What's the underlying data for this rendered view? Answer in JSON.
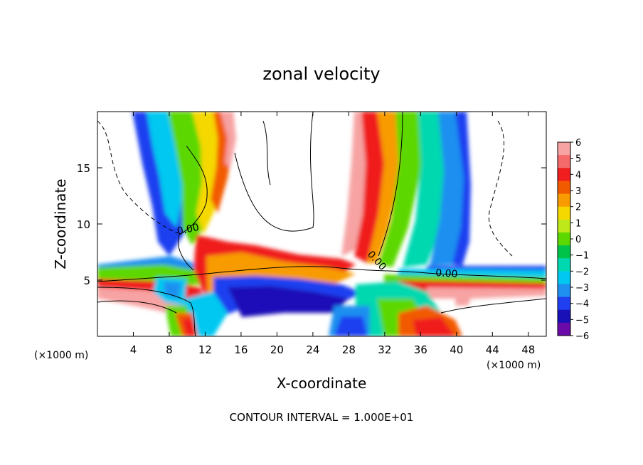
{
  "chart_data": {
    "type": "heatmap",
    "title": "zonal velocity",
    "xlabel": "X-coordinate",
    "ylabel": "Z-coordinate",
    "x_unit": "(×1000 m)",
    "xlim": [
      0,
      50
    ],
    "ylim": [
      0,
      20
    ],
    "x_ticks": [
      4,
      8,
      12,
      16,
      20,
      24,
      28,
      32,
      36,
      40,
      44,
      48
    ],
    "y_ticks": [
      5,
      10,
      15
    ],
    "colorbar": {
      "min": -6,
      "max": 6,
      "labels": [
        6,
        5,
        4,
        3,
        2,
        1,
        0,
        -1,
        -2,
        -3,
        -4,
        -5,
        -6
      ],
      "colors": [
        "#f7a3a3",
        "#f46a6a",
        "#f01e1e",
        "#f25a00",
        "#f79b00",
        "#f5d800",
        "#bfe81a",
        "#5cd800",
        "#00c44a",
        "#00d8b0",
        "#00c8f0",
        "#1f8ff0",
        "#1f3ff0",
        "#1a10b8",
        "#6a0aa8"
      ]
    },
    "contour_labels": [
      "0.00",
      "0.00",
      "0.00"
    ],
    "footer": "CONTOUR INTERVAL = 1.000E+01"
  }
}
